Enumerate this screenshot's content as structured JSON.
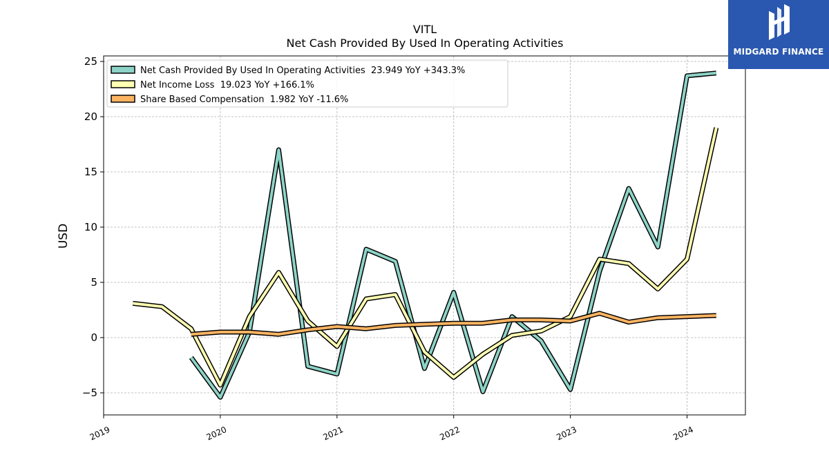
{
  "chart_data": {
    "type": "line",
    "title": "VITL",
    "subtitle": "Net Cash Provided By Used In Operating Activities",
    "ylabel": "USD",
    "xlabel": "",
    "ylim": [
      -7,
      25.5
    ],
    "xlim": [
      2019.0,
      2024.5
    ],
    "y_ticks": [
      -5,
      0,
      5,
      10,
      15,
      20,
      25
    ],
    "y_tick_labels": [
      "−5",
      "0",
      "5",
      "10",
      "15",
      "20",
      "25"
    ],
    "x_ticks": [
      2019,
      2020,
      2021,
      2022,
      2023,
      2024
    ],
    "x_tick_labels": [
      "2019",
      "2020",
      "2021",
      "2022",
      "2023",
      "2024"
    ],
    "grid": true,
    "legend_position": "top-left",
    "series": [
      {
        "name": "Net Cash Provided By Used In Operating Activities  23.949 YoY +343.3%",
        "color": "#8dd3c7",
        "x": [
          2019.75,
          2020.0,
          2020.25,
          2020.5,
          2020.75,
          2021.0,
          2021.25,
          2021.5,
          2021.75,
          2022.0,
          2022.25,
          2022.5,
          2022.75,
          2023.0,
          2023.25,
          2023.5,
          2023.75,
          2024.0,
          2024.25
        ],
        "y": [
          -1.8,
          -5.4,
          0.5,
          17.0,
          -2.6,
          -3.3,
          8.0,
          6.9,
          -2.8,
          4.1,
          -4.9,
          1.9,
          -0.3,
          -4.7,
          6.0,
          13.5,
          8.2,
          23.7,
          23.95
        ]
      },
      {
        "name": "Net Income Loss  19.023 YoY +166.1%",
        "color": "#ffffb3",
        "x": [
          2019.25,
          2019.5,
          2019.75,
          2020.0,
          2020.25,
          2020.5,
          2020.75,
          2021.0,
          2021.25,
          2021.5,
          2021.75,
          2022.0,
          2022.25,
          2022.5,
          2022.75,
          2023.0,
          2023.25,
          2023.5,
          2023.75,
          2024.0,
          2024.25
        ],
        "y": [
          3.1,
          2.8,
          0.8,
          -4.3,
          1.9,
          5.9,
          1.5,
          -0.8,
          3.5,
          3.9,
          -1.3,
          -3.6,
          -1.5,
          0.2,
          0.6,
          1.9,
          7.1,
          6.7,
          4.4,
          7.1,
          19.0
        ]
      },
      {
        "name": "Share Based Compensation  1.982 YoY -11.6%",
        "color": "#fdb462",
        "x": [
          2019.75,
          2020.0,
          2020.25,
          2020.5,
          2020.75,
          2021.0,
          2021.25,
          2021.5,
          2021.75,
          2022.0,
          2022.25,
          2022.5,
          2022.75,
          2023.0,
          2023.25,
          2023.5,
          2023.75,
          2024.0,
          2024.25
        ],
        "y": [
          0.3,
          0.5,
          0.5,
          0.3,
          0.7,
          1.0,
          0.8,
          1.1,
          1.2,
          1.3,
          1.3,
          1.6,
          1.6,
          1.5,
          2.2,
          1.4,
          1.8,
          1.9,
          2.0
        ]
      }
    ]
  },
  "logo": {
    "brand_text": "MIDGARD FINANCE",
    "background": "#2a58b0"
  }
}
